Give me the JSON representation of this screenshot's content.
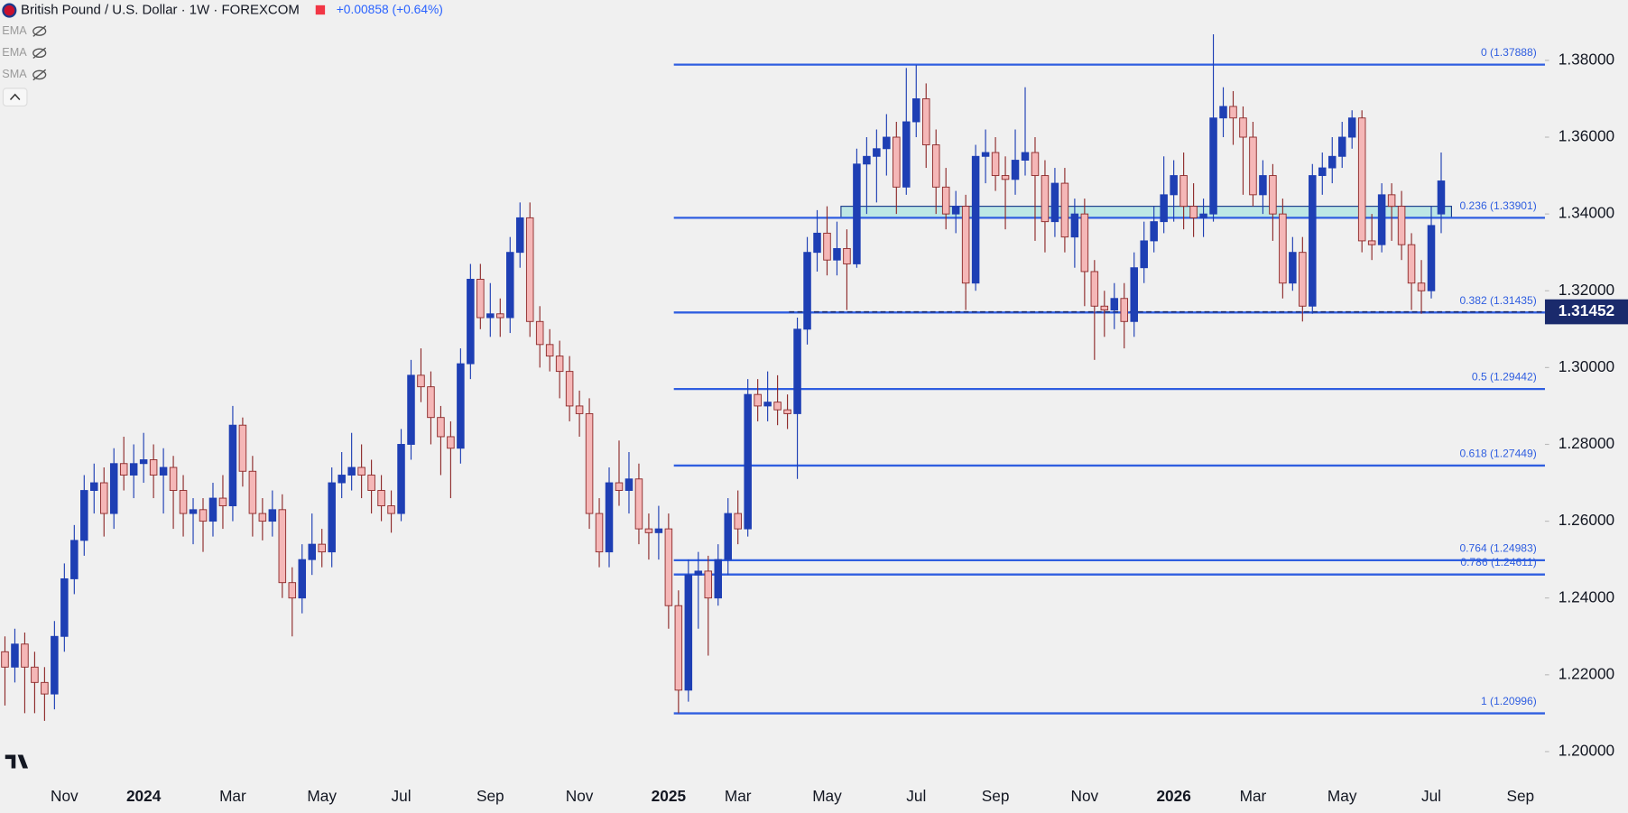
{
  "header": {
    "title": "British Pound / U.S. Dollar · 1W · FOREXCOM",
    "change": "+0.00858 (+0.64%)",
    "indicators": [
      "EMA",
      "EMA",
      "SMA"
    ]
  },
  "chart_data": {
    "type": "candlestick",
    "categories": [
      null,
      null,
      null,
      null,
      null,
      null,
      "Nov",
      null,
      null,
      null,
      null,
      null,
      null,
      null,
      "2024",
      null,
      null,
      null,
      null,
      null,
      null,
      null,
      null,
      "Mar",
      null,
      null,
      null,
      null,
      null,
      null,
      null,
      null,
      "May",
      null,
      null,
      null,
      null,
      null,
      null,
      null,
      "Jul",
      null,
      null,
      null,
      null,
      null,
      null,
      null,
      null,
      "Sep",
      null,
      null,
      null,
      null,
      null,
      null,
      null,
      null,
      "Nov",
      null,
      null,
      null,
      null,
      null,
      null,
      null,
      null,
      "2025",
      null,
      null,
      null,
      null,
      null,
      null,
      "Mar",
      null,
      null,
      null,
      null,
      null,
      null,
      null,
      null,
      "May",
      null,
      null,
      null,
      null,
      null,
      null,
      null,
      null,
      "Jul",
      null,
      null,
      null,
      null,
      null,
      null,
      null,
      "Sep",
      null,
      null,
      null,
      null,
      null,
      null,
      null,
      null,
      "Nov",
      null,
      null,
      null,
      null,
      null,
      null,
      null,
      null,
      "2026",
      null,
      null,
      null,
      null,
      null,
      null,
      null,
      "Mar",
      null,
      null,
      null,
      null,
      null,
      null,
      null,
      null,
      "May",
      null,
      null,
      null,
      null,
      null,
      null,
      null,
      null,
      "Jul",
      null,
      null,
      null,
      null,
      null,
      null,
      null,
      null,
      "Sep",
      null,
      null
    ],
    "open": [
      1.226,
      1.222,
      1.228,
      1.222,
      1.218,
      1.215,
      1.23,
      1.245,
      1.255,
      1.268,
      1.27,
      1.262,
      1.275,
      1.272,
      1.275,
      1.276,
      1.272,
      1.274,
      1.268,
      1.262,
      1.263,
      1.26,
      1.266,
      1.264,
      1.285,
      1.273,
      1.262,
      1.26,
      1.263,
      1.244,
      1.24,
      1.25,
      1.254,
      1.252,
      1.27,
      1.272,
      1.274,
      1.272,
      1.268,
      1.264,
      1.262,
      1.28,
      1.298,
      1.295,
      1.287,
      1.282,
      1.279,
      1.301,
      1.323,
      1.313,
      1.314,
      1.313,
      1.33,
      1.339,
      1.312,
      1.306,
      1.303,
      1.299,
      1.29,
      1.288,
      1.262,
      1.252,
      1.27,
      1.268,
      1.271,
      1.258,
      1.257,
      1.258,
      1.238,
      1.216,
      1.246,
      1.247,
      1.24,
      1.25,
      1.262,
      1.258,
      1.293,
      1.29,
      1.291,
      1.289,
      1.288,
      1.31,
      1.33,
      1.335,
      1.328,
      1.331,
      1.327,
      1.353,
      1.355,
      1.357,
      1.36,
      1.347,
      1.364,
      1.37,
      1.358,
      1.347,
      1.34,
      1.342,
      1.322,
      1.355,
      1.356,
      1.35,
      1.349,
      1.354,
      1.356,
      1.35,
      1.338,
      1.348,
      1.334,
      1.34,
      1.325,
      1.316,
      1.315,
      1.318,
      1.312,
      1.326,
      1.333,
      1.338,
      1.345,
      1.35,
      1.342,
      1.339,
      1.34,
      1.365,
      1.368,
      1.365,
      1.36,
      1.345,
      1.35,
      1.34,
      1.322,
      1.33,
      1.316,
      1.35,
      1.352,
      1.355,
      1.36,
      1.365,
      1.333,
      1.332,
      1.345,
      1.342,
      1.332,
      1.322,
      1.32,
      1.34,
      null,
      null,
      null,
      null,
      null,
      null,
      null,
      null,
      null,
      null
    ],
    "high": [
      1.23,
      1.232,
      1.231,
      1.226,
      1.222,
      1.234,
      1.249,
      1.259,
      1.272,
      1.275,
      1.274,
      1.279,
      1.282,
      1.28,
      1.283,
      1.28,
      1.279,
      1.277,
      1.272,
      1.266,
      1.266,
      1.27,
      1.272,
      1.29,
      1.287,
      1.277,
      1.266,
      1.268,
      1.267,
      1.248,
      1.254,
      1.262,
      1.258,
      1.274,
      1.278,
      1.283,
      1.28,
      1.276,
      1.272,
      1.268,
      1.284,
      1.302,
      1.305,
      1.299,
      1.29,
      1.286,
      1.305,
      1.327,
      1.327,
      1.322,
      1.318,
      1.334,
      1.343,
      1.343,
      1.316,
      1.31,
      1.307,
      1.303,
      1.294,
      1.292,
      1.266,
      1.274,
      1.281,
      1.278,
      1.275,
      1.262,
      1.264,
      1.262,
      1.242,
      1.25,
      1.252,
      1.251,
      1.254,
      1.266,
      1.268,
      1.297,
      1.297,
      1.299,
      1.298,
      1.293,
      1.313,
      1.334,
      1.341,
      1.342,
      1.338,
      1.336,
      1.357,
      1.36,
      1.362,
      1.366,
      1.364,
      1.378,
      1.3788,
      1.374,
      1.362,
      1.352,
      1.346,
      1.345,
      1.358,
      1.362,
      1.36,
      1.355,
      1.362,
      1.373,
      1.36,
      1.354,
      1.352,
      1.352,
      1.344,
      1.344,
      1.328,
      1.32,
      1.322,
      1.322,
      1.33,
      1.338,
      1.342,
      1.355,
      1.354,
      1.356,
      1.348,
      1.344,
      1.3868,
      1.373,
      1.372,
      1.368,
      1.364,
      1.354,
      1.353,
      1.344,
      1.334,
      1.334,
      1.353,
      1.356,
      1.36,
      1.364,
      1.367,
      1.367,
      1.34,
      1.348,
      1.348,
      1.346,
      1.335,
      1.328,
      1.342,
      1.356,
      null,
      null,
      null,
      null,
      null,
      null,
      null,
      null,
      null,
      null
    ],
    "low": [
      1.212,
      1.218,
      1.21,
      1.21,
      1.208,
      1.211,
      1.226,
      1.241,
      1.251,
      1.262,
      1.256,
      1.258,
      1.268,
      1.266,
      1.27,
      1.266,
      1.262,
      1.258,
      1.256,
      1.254,
      1.252,
      1.256,
      1.258,
      1.26,
      1.269,
      1.256,
      1.255,
      1.256,
      1.24,
      1.23,
      1.236,
      1.246,
      1.248,
      1.248,
      1.266,
      1.268,
      1.266,
      1.262,
      1.26,
      1.257,
      1.26,
      1.276,
      1.291,
      1.28,
      1.272,
      1.266,
      1.275,
      1.297,
      1.31,
      1.308,
      1.308,
      1.309,
      1.326,
      1.308,
      1.3,
      1.299,
      1.292,
      1.286,
      1.282,
      1.258,
      1.248,
      1.248,
      1.264,
      1.262,
      1.254,
      1.25,
      1.25,
      1.232,
      1.21,
      1.213,
      1.232,
      1.225,
      1.238,
      1.246,
      1.254,
      1.256,
      1.286,
      1.286,
      1.285,
      1.284,
      1.271,
      1.306,
      1.325,
      1.324,
      1.324,
      1.315,
      1.326,
      1.34,
      1.343,
      1.35,
      1.34,
      1.345,
      1.36,
      1.352,
      1.34,
      1.336,
      1.335,
      1.315,
      1.32,
      1.348,
      1.346,
      1.336,
      1.345,
      1.35,
      1.333,
      1.33,
      1.334,
      1.33,
      1.326,
      1.316,
      1.302,
      1.308,
      1.31,
      1.305,
      1.308,
      1.322,
      1.33,
      1.335,
      1.338,
      1.336,
      1.334,
      1.334,
      1.338,
      1.36,
      1.358,
      1.345,
      1.342,
      1.34,
      1.333,
      1.318,
      1.32,
      1.312,
      1.314,
      1.345,
      1.348,
      1.352,
      1.357,
      1.33,
      1.328,
      1.33,
      1.333,
      1.328,
      1.315,
      1.314,
      1.318,
      1.335,
      null,
      null,
      null,
      null,
      null,
      null,
      null,
      null,
      null,
      null
    ],
    "close": [
      1.222,
      1.228,
      1.222,
      1.218,
      1.215,
      1.23,
      1.245,
      1.255,
      1.268,
      1.27,
      1.262,
      1.275,
      1.272,
      1.275,
      1.276,
      1.272,
      1.274,
      1.268,
      1.262,
      1.263,
      1.26,
      1.266,
      1.264,
      1.285,
      1.273,
      1.262,
      1.26,
      1.263,
      1.244,
      1.24,
      1.25,
      1.254,
      1.252,
      1.27,
      1.272,
      1.274,
      1.272,
      1.268,
      1.264,
      1.262,
      1.28,
      1.298,
      1.295,
      1.287,
      1.282,
      1.279,
      1.301,
      1.323,
      1.313,
      1.314,
      1.313,
      1.33,
      1.339,
      1.312,
      1.306,
      1.303,
      1.299,
      1.29,
      1.288,
      1.262,
      1.252,
      1.27,
      1.268,
      1.271,
      1.258,
      1.257,
      1.258,
      1.238,
      1.216,
      1.246,
      1.247,
      1.24,
      1.25,
      1.262,
      1.258,
      1.293,
      1.29,
      1.291,
      1.289,
      1.288,
      1.31,
      1.33,
      1.335,
      1.328,
      1.331,
      1.327,
      1.353,
      1.355,
      1.357,
      1.36,
      1.347,
      1.364,
      1.37,
      1.358,
      1.347,
      1.34,
      1.342,
      1.322,
      1.355,
      1.356,
      1.35,
      1.349,
      1.354,
      1.356,
      1.35,
      1.338,
      1.348,
      1.334,
      1.34,
      1.325,
      1.316,
      1.315,
      1.318,
      1.312,
      1.326,
      1.333,
      1.338,
      1.345,
      1.35,
      1.342,
      1.339,
      1.34,
      1.365,
      1.368,
      1.365,
      1.36,
      1.345,
      1.35,
      1.34,
      1.322,
      1.33,
      1.316,
      1.35,
      1.352,
      1.355,
      1.36,
      1.365,
      1.333,
      1.332,
      1.345,
      1.342,
      1.332,
      1.322,
      1.32,
      1.337,
      1.3486,
      null,
      null,
      null,
      null,
      null,
      null,
      null,
      null,
      null,
      null
    ],
    "up_color": "#1e3fb4",
    "down_color": "#f5b7b7",
    "down_border": "#8e2b2b",
    "ylim": [
      1.1943,
      1.3957
    ],
    "yticks": [
      {
        "value": 1.2,
        "label": "1.20000"
      },
      {
        "value": 1.22,
        "label": "1.22000"
      },
      {
        "value": 1.24,
        "label": "1.24000"
      },
      {
        "value": 1.26,
        "label": "1.26000"
      },
      {
        "value": 1.28,
        "label": "1.28000"
      },
      {
        "value": 1.3,
        "label": "1.30000"
      },
      {
        "value": 1.32,
        "label": "1.32000"
      },
      {
        "value": 1.34,
        "label": "1.34000"
      },
      {
        "value": 1.36,
        "label": "1.36000"
      },
      {
        "value": 1.38,
        "label": "1.38000"
      }
    ],
    "fib_color": "#2f5ee0",
    "fib_levels": [
      {
        "value": 1.37888,
        "label": "0 (1.37888)"
      },
      {
        "value": 1.33901,
        "label": "0.236 (1.33901)"
      },
      {
        "value": 1.31435,
        "label": "0.382 (1.31435)"
      },
      {
        "value": 1.29442,
        "label": "0.5 (1.29442)"
      },
      {
        "value": 1.27449,
        "label": "0.618 (1.27449)"
      },
      {
        "value": 1.24983,
        "label": "0.764 (1.24983)"
      },
      {
        "value": 1.24611,
        "label": "0.786 (1.24611)"
      },
      {
        "value": 1.20996,
        "label": "1 (1.20996)"
      }
    ],
    "zone": [
      1.339,
      1.342
    ],
    "price_line": 1.31452
  }
}
